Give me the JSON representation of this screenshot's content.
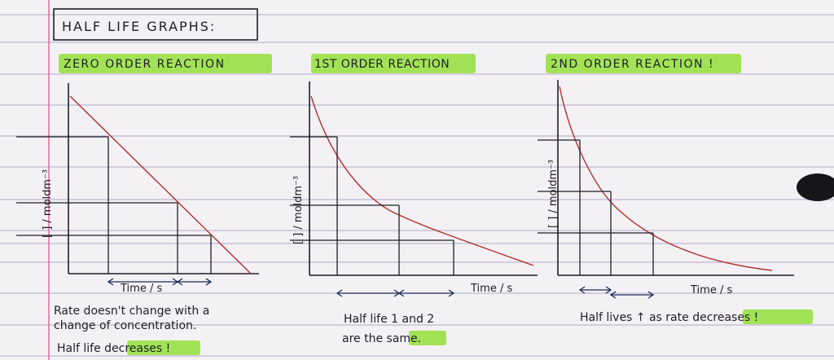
{
  "title": "HALF LIFE GRAPHS:",
  "colors": {
    "paper": "#f3f1f4",
    "ruled_line": "#9d92b8",
    "margin_line": "#e06aa0",
    "ink": "#1e1e28",
    "pen_red": "#b03030",
    "pen_navy": "#1d2b57",
    "highlight": "#93e13a"
  },
  "panels": [
    {
      "heading": "ZERO ORDER REACTION",
      "ylabel": "[ ] / moldm⁻³",
      "xlabel": "Time / s",
      "notes": [
        "Rate doesn't change with a",
        "change of concentration.",
        "Half life decreases !"
      ],
      "highlight_word": "decreases"
    },
    {
      "heading": "1ST ORDER REACTION",
      "ylabel": "[ ] / moldm⁻³",
      "xlabel": "Time / s",
      "notes": [
        "Half life 1 and 2",
        "are the same."
      ],
      "highlight_word": "same"
    },
    {
      "heading": "2ND ORDER REACTION !",
      "ylabel": "[ ] / moldm⁻³",
      "xlabel": "Time / s",
      "notes": [
        "Half lives ↑ as rate decreases !"
      ],
      "highlight_word": "decreases"
    }
  ]
}
